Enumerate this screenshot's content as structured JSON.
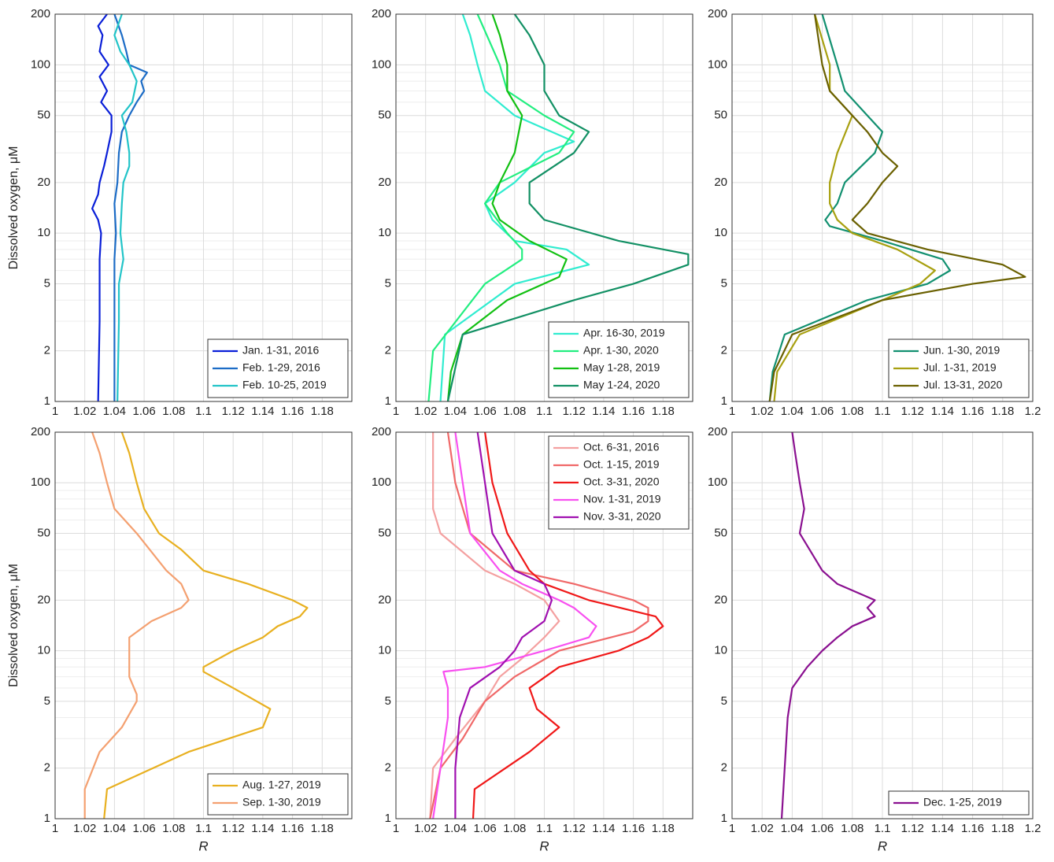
{
  "chart_data": [
    {
      "type": "line",
      "xlim": [
        1,
        1.2
      ],
      "xticks": [
        1,
        1.02,
        1.04,
        1.06,
        1.08,
        1.1,
        1.12,
        1.14,
        1.16,
        1.18
      ],
      "ylim": [
        1,
        200
      ],
      "yticks": [
        1,
        2,
        5,
        10,
        20,
        50,
        100,
        200
      ],
      "ylog": true,
      "grid": true,
      "minor_grid": true,
      "legend": "lower right",
      "ylabel": "Dissolved oxygen, μM",
      "series": [
        {
          "name": "Jan. 1-31, 2016",
          "color": "#0a1fd8",
          "y": [
            1,
            3,
            7,
            10,
            12,
            14,
            17,
            20,
            25,
            30,
            40,
            50,
            60,
            70,
            85,
            100,
            120,
            150,
            170,
            200
          ],
          "values": [
            1.029,
            1.03,
            1.03,
            1.031,
            1.029,
            1.025,
            1.029,
            1.03,
            1.033,
            1.035,
            1.038,
            1.038,
            1.031,
            1.035,
            1.03,
            1.036,
            1.03,
            1.032,
            1.029,
            1.035
          ]
        },
        {
          "name": "Feb. 1-29, 2016",
          "color": "#1c6cc6",
          "y": [
            1,
            3,
            7,
            10,
            15,
            20,
            30,
            40,
            50,
            60,
            70,
            80,
            90,
            100,
            120,
            150,
            200
          ],
          "values": [
            1.04,
            1.04,
            1.04,
            1.041,
            1.04,
            1.042,
            1.043,
            1.045,
            1.05,
            1.055,
            1.06,
            1.058,
            1.062,
            1.05,
            1.048,
            1.045,
            1.04
          ]
        },
        {
          "name": "Feb. 10-25, 2019",
          "color": "#22c4c8",
          "y": [
            1,
            3,
            5,
            7,
            10,
            15,
            20,
            25,
            30,
            40,
            50,
            60,
            80,
            100,
            120,
            150,
            200
          ],
          "values": [
            1.042,
            1.043,
            1.043,
            1.046,
            1.044,
            1.045,
            1.046,
            1.05,
            1.05,
            1.048,
            1.045,
            1.052,
            1.055,
            1.05,
            1.044,
            1.04,
            1.045
          ]
        }
      ]
    },
    {
      "type": "line",
      "xlim": [
        1,
        1.2
      ],
      "xticks": [
        1,
        1.02,
        1.04,
        1.06,
        1.08,
        1.1,
        1.12,
        1.14,
        1.16,
        1.18
      ],
      "ylim": [
        1,
        200
      ],
      "yticks": [
        1,
        2,
        5,
        10,
        20,
        50,
        100,
        200
      ],
      "ylog": true,
      "grid": true,
      "minor_grid": true,
      "legend": "lower right",
      "series": [
        {
          "name": "Apr. 16-30, 2019",
          "color": "#30ecd0",
          "y": [
            1,
            2.5,
            5,
            6.5,
            8,
            9,
            12,
            15,
            20,
            30,
            35,
            50,
            70,
            100,
            150,
            200
          ],
          "values": [
            1.03,
            1.033,
            1.08,
            1.13,
            1.115,
            1.08,
            1.065,
            1.06,
            1.08,
            1.1,
            1.12,
            1.08,
            1.06,
            1.055,
            1.05,
            1.045
          ]
        },
        {
          "name": "Apr.  1-30, 2020",
          "color": "#22ee80",
          "y": [
            1,
            2,
            5,
            7,
            8,
            10,
            15,
            20,
            30,
            40,
            50,
            70,
            100,
            200
          ],
          "values": [
            1.022,
            1.025,
            1.06,
            1.085,
            1.085,
            1.075,
            1.06,
            1.07,
            1.11,
            1.12,
            1.1,
            1.075,
            1.07,
            1.055
          ]
        },
        {
          "name": "May  1-28, 2019",
          "color": "#12c012",
          "y": [
            1,
            1.5,
            2.5,
            4,
            5.5,
            7,
            9,
            12,
            15,
            20,
            30,
            50,
            70,
            100,
            150,
            200
          ],
          "values": [
            1.035,
            1.037,
            1.045,
            1.075,
            1.11,
            1.115,
            1.09,
            1.07,
            1.065,
            1.07,
            1.08,
            1.085,
            1.075,
            1.075,
            1.07,
            1.065
          ]
        },
        {
          "name": "May  1-24, 2020",
          "color": "#129064",
          "y": [
            1,
            2.5,
            4,
            5,
            6.5,
            7.5,
            9,
            12,
            15,
            20,
            30,
            40,
            50,
            70,
            100,
            150,
            200
          ],
          "values": [
            1.035,
            1.045,
            1.12,
            1.16,
            1.197,
            1.197,
            1.15,
            1.1,
            1.09,
            1.09,
            1.12,
            1.13,
            1.11,
            1.1,
            1.1,
            1.09,
            1.08
          ]
        }
      ]
    },
    {
      "type": "line",
      "xlim": [
        1,
        1.2
      ],
      "xticks": [
        1,
        1.02,
        1.04,
        1.06,
        1.08,
        1.1,
        1.12,
        1.14,
        1.16,
        1.18,
        1.2
      ],
      "ylim": [
        1,
        200
      ],
      "yticks": [
        1,
        2,
        5,
        10,
        20,
        50,
        100,
        200
      ],
      "ylog": true,
      "grid": true,
      "minor_grid": true,
      "legend": "lower right",
      "series": [
        {
          "name": "Jun. 1-30, 2019",
          "color": "#129070",
          "y": [
            1,
            1.5,
            2.5,
            4,
            5,
            6,
            7,
            9,
            11,
            12,
            15,
            20,
            30,
            40,
            50,
            70,
            100,
            200
          ],
          "values": [
            1.025,
            1.027,
            1.035,
            1.09,
            1.13,
            1.145,
            1.14,
            1.1,
            1.065,
            1.062,
            1.07,
            1.075,
            1.095,
            1.1,
            1.09,
            1.075,
            1.07,
            1.06
          ]
        },
        {
          "name": "Jul. 1-31, 2019",
          "color": "#a8a010",
          "y": [
            1,
            1.5,
            2.5,
            4,
            5,
            6,
            8,
            10,
            12,
            15,
            20,
            30,
            50,
            70,
            100,
            200
          ],
          "values": [
            1.028,
            1.03,
            1.045,
            1.1,
            1.125,
            1.135,
            1.11,
            1.08,
            1.07,
            1.065,
            1.065,
            1.07,
            1.08,
            1.065,
            1.065,
            1.055
          ]
        },
        {
          "name": "Jul. 13-31, 2020",
          "color": "#6a6000",
          "y": [
            1,
            1.5,
            2.5,
            4,
            5,
            5.5,
            6.5,
            8,
            10,
            12,
            15,
            20,
            25,
            30,
            40,
            50,
            70,
            100,
            200
          ],
          "values": [
            1.025,
            1.028,
            1.04,
            1.1,
            1.16,
            1.195,
            1.18,
            1.13,
            1.09,
            1.08,
            1.09,
            1.1,
            1.11,
            1.1,
            1.09,
            1.08,
            1.065,
            1.06,
            1.055
          ]
        }
      ]
    },
    {
      "type": "line",
      "xlim": [
        1,
        1.2
      ],
      "xticks": [
        1,
        1.02,
        1.04,
        1.06,
        1.08,
        1.1,
        1.12,
        1.14,
        1.16,
        1.18
      ],
      "ylim": [
        1,
        200
      ],
      "yticks": [
        1,
        2,
        5,
        10,
        20,
        50,
        100,
        200
      ],
      "ylog": true,
      "grid": true,
      "minor_grid": true,
      "legend": "lower right",
      "ylabel": "Dissolved oxygen, μM",
      "xlabel": "R",
      "series": [
        {
          "name": "Aug. 1-27, 2019",
          "color": "#e8b020",
          "y": [
            1,
            1.5,
            2.5,
            3.5,
            4.5,
            6,
            7.5,
            8,
            10,
            12,
            14,
            16,
            18,
            20,
            25,
            30,
            40,
            50,
            70,
            100,
            150,
            200
          ],
          "values": [
            1.033,
            1.035,
            1.09,
            1.14,
            1.145,
            1.12,
            1.1,
            1.1,
            1.12,
            1.14,
            1.15,
            1.165,
            1.17,
            1.16,
            1.13,
            1.1,
            1.085,
            1.07,
            1.06,
            1.055,
            1.05,
            1.045
          ]
        },
        {
          "name": "Sep. 1-30, 2019",
          "color": "#f4a070",
          "y": [
            1,
            1.5,
            2.5,
            3.5,
            5,
            5.5,
            7,
            9,
            12,
            15,
            18,
            20,
            25,
            30,
            50,
            70,
            100,
            150,
            200
          ],
          "values": [
            1.02,
            1.02,
            1.03,
            1.045,
            1.055,
            1.055,
            1.05,
            1.05,
            1.05,
            1.065,
            1.085,
            1.09,
            1.085,
            1.075,
            1.055,
            1.04,
            1.035,
            1.03,
            1.025
          ]
        }
      ]
    },
    {
      "type": "line",
      "xlim": [
        1,
        1.2
      ],
      "xticks": [
        1,
        1.02,
        1.04,
        1.06,
        1.08,
        1.1,
        1.12,
        1.14,
        1.16,
        1.18
      ],
      "ylim": [
        1,
        200
      ],
      "yticks": [
        1,
        2,
        5,
        10,
        20,
        50,
        100,
        200
      ],
      "ylog": true,
      "grid": true,
      "minor_grid": true,
      "legend": "upper right",
      "xlabel": "R",
      "series": [
        {
          "name": "Oct. 6-31, 2016",
          "color": "#f4a0a0",
          "y": [
            1,
            2,
            3,
            5,
            7,
            9,
            12,
            15,
            20,
            25,
            30,
            50,
            70,
            100,
            200
          ],
          "values": [
            1.023,
            1.025,
            1.04,
            1.06,
            1.07,
            1.085,
            1.1,
            1.11,
            1.1,
            1.08,
            1.06,
            1.03,
            1.025,
            1.025,
            1.025
          ]
        },
        {
          "name": "Oct. 1-15, 2019",
          "color": "#f06868",
          "y": [
            1,
            2,
            3,
            5,
            7,
            10,
            13,
            15,
            18,
            20,
            25,
            30,
            50,
            100,
            200
          ],
          "values": [
            1.023,
            1.03,
            1.045,
            1.06,
            1.08,
            1.11,
            1.16,
            1.17,
            1.17,
            1.16,
            1.12,
            1.08,
            1.05,
            1.04,
            1.035
          ]
        },
        {
          "name": "Oct. 3-31, 2020",
          "color": "#f01818",
          "y": [
            1,
            1.5,
            2.5,
            3.5,
            4.5,
            6,
            8,
            10,
            12,
            14,
            16,
            20,
            25,
            30,
            50,
            100,
            200
          ],
          "values": [
            1.052,
            1.053,
            1.09,
            1.11,
            1.095,
            1.09,
            1.11,
            1.15,
            1.17,
            1.18,
            1.175,
            1.13,
            1.1,
            1.09,
            1.075,
            1.065,
            1.06
          ]
        },
        {
          "name": "Nov. 1-31, 2019",
          "color": "#f850f0",
          "y": [
            1,
            2,
            4,
            6,
            7.5,
            8,
            10,
            12,
            14,
            18,
            20,
            25,
            30,
            50,
            100,
            200
          ],
          "values": [
            1.025,
            1.03,
            1.035,
            1.035,
            1.032,
            1.06,
            1.1,
            1.13,
            1.135,
            1.12,
            1.11,
            1.085,
            1.07,
            1.05,
            1.045,
            1.04
          ]
        },
        {
          "name": "Nov. 3-31, 2020",
          "color": "#a010b0",
          "y": [
            1,
            2,
            4,
            6,
            8,
            10,
            12,
            15,
            20,
            25,
            30,
            50,
            100,
            200
          ],
          "values": [
            1.04,
            1.04,
            1.043,
            1.05,
            1.07,
            1.08,
            1.085,
            1.1,
            1.105,
            1.1,
            1.08,
            1.065,
            1.06,
            1.055
          ]
        }
      ]
    },
    {
      "type": "line",
      "xlim": [
        1,
        1.2
      ],
      "xticks": [
        1,
        1.02,
        1.04,
        1.06,
        1.08,
        1.1,
        1.12,
        1.14,
        1.16,
        1.18,
        1.2
      ],
      "ylim": [
        1,
        200
      ],
      "yticks": [
        1,
        2,
        5,
        10,
        20,
        50,
        100,
        200
      ],
      "ylog": true,
      "grid": true,
      "minor_grid": true,
      "legend": "lower right",
      "xlabel": "R",
      "series": [
        {
          "name": "Dec. 1-25, 2019",
          "color": "#8a1090",
          "y": [
            1,
            2,
            4,
            6,
            8,
            10,
            12,
            14,
            16,
            18,
            20,
            25,
            30,
            50,
            70,
            100,
            150,
            200
          ],
          "values": [
            1.033,
            1.035,
            1.037,
            1.04,
            1.05,
            1.06,
            1.07,
            1.08,
            1.095,
            1.09,
            1.095,
            1.07,
            1.06,
            1.045,
            1.048,
            1.045,
            1.042,
            1.04
          ]
        }
      ]
    }
  ]
}
